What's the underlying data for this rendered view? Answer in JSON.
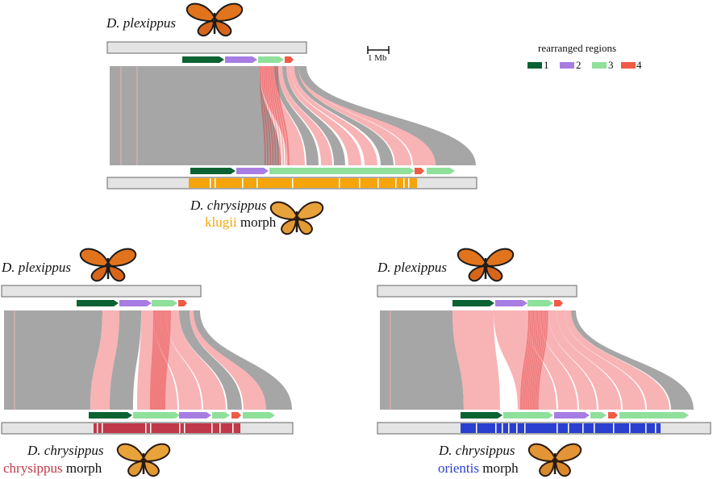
{
  "panels": [
    {
      "id": "klugii",
      "top_species": "D. plexippus",
      "bottom_species": "D. chrysippus",
      "morph": "klugii",
      "morph_suffix": "morph",
      "morph_color": "#f5a50a"
    },
    {
      "id": "chrysippus",
      "top_species": "D. plexippus",
      "bottom_species": "D. chrysippus",
      "morph": "chrysippus",
      "morph_suffix": "morph",
      "morph_color": "#c0394a"
    },
    {
      "id": "orientis",
      "top_species": "D. plexippus",
      "bottom_species": "D. chrysippus",
      "morph": "orientis",
      "morph_suffix": "morph",
      "morph_color": "#2a3fcf"
    }
  ],
  "scale_bar": {
    "label": "1 Mb"
  },
  "legend": {
    "title": "rearranged regions",
    "items": [
      {
        "label": "1",
        "color": "#0b6232"
      },
      {
        "label": "2",
        "color": "#a77de3"
      },
      {
        "label": "3",
        "color": "#8fe09a"
      },
      {
        "label": "4",
        "color": "#ef5b45"
      }
    ]
  },
  "colors": {
    "collinear": "#a6a6a6",
    "inverted": "#f8b3b5",
    "highlight": "#e11a1a",
    "chromosome": "#e4e4e4"
  }
}
